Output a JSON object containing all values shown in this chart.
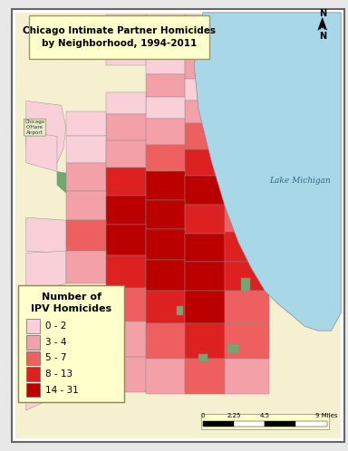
{
  "title_line1": "Chicago Intimate Partner Homicides",
  "title_line2": "by Neighborhood, 1994-2011",
  "title_box_color": "#ffffcc",
  "title_box_edge": "#999966",
  "background_map_color": "#f5f0d0",
  "lake_color": "#a8d8e8",
  "lake_label": "Lake Michigan",
  "airport_label": "Chicago\nO'Hare\nAirport",
  "legend_title_line1": "Number of",
  "legend_title_line2": "IPV Homicides",
  "legend_categories": [
    "0 - 2",
    "3 - 4",
    "5 - 7",
    "8 - 13",
    "14 - 31"
  ],
  "legend_colors": [
    "#f9d0d8",
    "#f4a0a8",
    "#ee6060",
    "#dd2020",
    "#bb0000"
  ],
  "scale_bar_label": "0    2.25    4.5              9 Miles",
  "outer_bg": "#f0f0f0",
  "map_border_color": "#888888",
  "green_park_color": "#70a870",
  "road_color": "#aaaaaa",
  "neighborhood_outline": "#888888"
}
